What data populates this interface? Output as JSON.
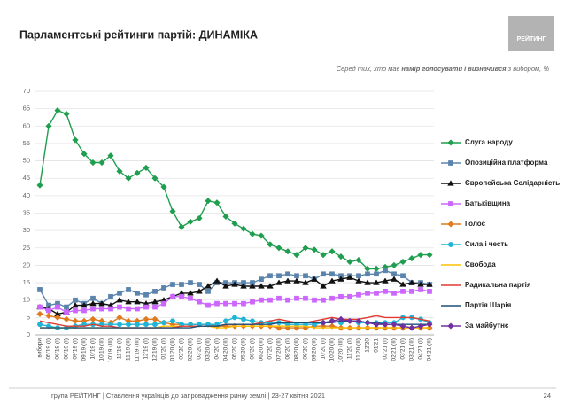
{
  "chart_data": {
    "type": "line",
    "title": "Парламентські рейтинги партій: ДИНАМІКА",
    "subtitle": [
      "Серед тих, хто має ",
      "намір голосувати і визначився",
      " з вибором, %"
    ],
    "logo": "РЕЙТИНГ",
    "footer": "група РЕЙТИНГ | Ставлення українців до запровадження ринку землі | 23-27 квітня 2021",
    "page_number": "24",
    "categories": [
      "вибори",
      "05'19 (I)",
      "06'19 (I)",
      "08'19 (I)",
      "09'19 (I)",
      "09'19 (II)",
      "10'19 (I)",
      "10'19 (II)",
      "10'19 (III)",
      "11'19 (I)",
      "11'19 (II)",
      "11'19 (III)",
      "12'19 (I)",
      "12'19 (II)",
      "01'20 (I)",
      "01'20 (II)",
      "02'20 (I)",
      "02'20 (II)",
      "03'20 (I)",
      "03'20 (II)",
      "04'20 (I)",
      "04'20 (II)",
      "05'20 (I)",
      "05'20 (II)",
      "06'20 (I)",
      "06'20 (II)",
      "07'20 (I)",
      "07'20 (II)",
      "08'20 (I)",
      "08'20 (II)",
      "09'20 (I)",
      "09'20 (II)",
      "10'20 (I)",
      "10'20 (II)",
      "10'20 (III)",
      "11'20 (I)",
      "11'20 (II)",
      "12'20",
      "01'21",
      "02'21 (I)",
      "02'21 (II)",
      "03'21 (I)",
      "03'21 (II)",
      "04'21 (I)",
      "04'21 (II)"
    ],
    "ylim": [
      0,
      70
    ],
    "yticks": [
      0,
      5,
      10,
      15,
      20,
      25,
      30,
      35,
      40,
      45,
      50,
      55,
      60,
      65,
      70
    ],
    "grid": true,
    "legend": "right",
    "series": [
      {
        "name": "Слуга народу",
        "color": "#1e9e4e",
        "marker": "diamond",
        "values": [
          43,
          60,
          64.5,
          63.5,
          56,
          52,
          49.5,
          49.5,
          51.5,
          47,
          45,
          46.5,
          48,
          45,
          42.5,
          35.5,
          31,
          32.5,
          33.5,
          38.5,
          38,
          34,
          32,
          30.5,
          29,
          28.5,
          26,
          25,
          24,
          23,
          25,
          24.5,
          23,
          24,
          22.5,
          21,
          21.5,
          19,
          19,
          19.5,
          20,
          21,
          22,
          23,
          23
        ]
      },
      {
        "name": "Опозиційна платформа",
        "color": "#5b84ad",
        "marker": "square",
        "values": [
          13,
          8.5,
          9,
          8,
          10,
          9,
          10.5,
          9,
          11,
          12,
          13,
          12,
          11.5,
          12.5,
          13.5,
          14.5,
          14.5,
          15,
          14.5,
          12.5,
          15,
          15,
          15,
          15,
          15,
          16,
          17,
          17,
          17.5,
          17,
          17,
          16,
          17.5,
          17.5,
          17,
          17,
          17,
          17.5,
          17.5,
          18.5,
          17.5,
          17,
          15,
          15,
          14.5
        ]
      },
      {
        "name": "Європейська Солідарність",
        "color": "#111111",
        "marker": "triangle",
        "values": [
          8,
          7.5,
          6,
          6.5,
          8.5,
          8.5,
          9,
          9,
          8.5,
          10,
          9.5,
          9.5,
          9,
          9.5,
          10,
          11,
          12,
          12,
          12.5,
          14,
          15.5,
          14,
          14.5,
          14,
          14,
          14,
          14,
          15,
          15.5,
          15.5,
          15,
          16,
          14,
          15.5,
          16,
          16.5,
          15.5,
          15,
          15,
          15.5,
          16,
          14.5,
          15,
          14.5,
          14.5
        ]
      },
      {
        "name": "Батьківщина",
        "color": "#cc66ff",
        "marker": "square",
        "values": [
          8,
          7,
          8,
          6.5,
          7,
          7,
          7.5,
          7.5,
          7.5,
          8,
          7.5,
          7.5,
          8,
          8,
          9,
          11,
          11,
          10.5,
          9.5,
          8.5,
          9,
          9,
          9,
          9,
          9.5,
          10,
          10,
          10.5,
          10,
          10.5,
          10.5,
          10,
          10,
          10.5,
          11,
          11,
          11.5,
          12,
          12,
          12.5,
          12,
          12.5,
          12.5,
          13,
          12.5
        ]
      },
      {
        "name": "Голос",
        "color": "#e07a1f",
        "marker": "diamond",
        "values": [
          6,
          5.5,
          5,
          4.5,
          4,
          4,
          4.5,
          4,
          3.5,
          5,
          4,
          4,
          4.5,
          4.5,
          3.5,
          3,
          3,
          3,
          3,
          3,
          2.5,
          2.5,
          2.5,
          2.5,
          2.5,
          2.5,
          2.5,
          2,
          2,
          2,
          2,
          2.5,
          2.5,
          2.5,
          2,
          2,
          2,
          2,
          2,
          2,
          2,
          2,
          2,
          2,
          2
        ]
      },
      {
        "name": "Сила і честь",
        "color": "#1fb5d6",
        "marker": "circle",
        "values": [
          3,
          2.5,
          2,
          2,
          2.5,
          3,
          3,
          3,
          3,
          3,
          3,
          3,
          3,
          3,
          3.5,
          4,
          3,
          3,
          3,
          3,
          3,
          4,
          5,
          4.5,
          4,
          3.5,
          3.5,
          3.5,
          3,
          3,
          3,
          3,
          3.5,
          4,
          3.5,
          4,
          3.5,
          3.5,
          3.5,
          3.5,
          3.5,
          5,
          5,
          4.5,
          3.5
        ]
      },
      {
        "name": "Свобода",
        "color": "#ffc000",
        "marker": "none",
        "values": [
          2,
          2,
          2,
          2,
          2,
          2,
          2,
          2,
          2,
          2,
          2,
          2,
          2,
          2,
          2.5,
          2.5,
          2.5,
          2.5,
          2.5,
          2.5,
          2,
          2,
          2.5,
          2.5,
          2.5,
          2.5,
          2.5,
          2.5,
          2.5,
          2.5,
          2.5,
          2,
          2,
          2,
          2,
          2,
          2,
          2,
          2,
          2,
          2,
          2,
          2,
          2,
          2
        ]
      },
      {
        "name": "Радикальна партія",
        "color": "#e03c31",
        "marker": "none",
        "values": [
          4,
          3.5,
          3,
          2.5,
          2.5,
          2.5,
          3,
          2.5,
          2.5,
          2,
          2,
          2,
          2,
          2,
          2,
          2,
          2.5,
          2.5,
          2.5,
          2.5,
          2.5,
          3,
          3,
          3,
          3,
          3.5,
          4,
          4.5,
          4,
          3.5,
          3.5,
          4,
          4.5,
          5,
          4.5,
          4.5,
          4.5,
          5,
          5.5,
          5,
          5,
          5,
          5,
          4.5,
          4
        ]
      },
      {
        "name": "Партія Шарія",
        "color": "#1f4e79",
        "marker": "none",
        "values": [
          2,
          2,
          2,
          2,
          2,
          2,
          2,
          2,
          2,
          2,
          2,
          2,
          2,
          2,
          2,
          2,
          2,
          2,
          2.5,
          2.5,
          2.5,
          3,
          3,
          3,
          3,
          3,
          3,
          3.5,
          3.5,
          3.5,
          3.5,
          3.5,
          3.5,
          3.5,
          4,
          4,
          4,
          3.5,
          3.5,
          3,
          3,
          3,
          3,
          3,
          3
        ]
      },
      {
        "name": "За майбутнє",
        "color": "#7030a0",
        "marker": "diamond",
        "values": [
          null,
          null,
          null,
          null,
          null,
          null,
          null,
          null,
          null,
          null,
          null,
          null,
          null,
          null,
          null,
          null,
          null,
          null,
          null,
          null,
          null,
          null,
          null,
          null,
          null,
          null,
          null,
          null,
          null,
          null,
          null,
          null,
          3.5,
          4,
          4.5,
          4,
          4,
          3.5,
          3,
          3,
          3,
          2.5,
          2,
          2.5,
          3
        ]
      }
    ]
  }
}
